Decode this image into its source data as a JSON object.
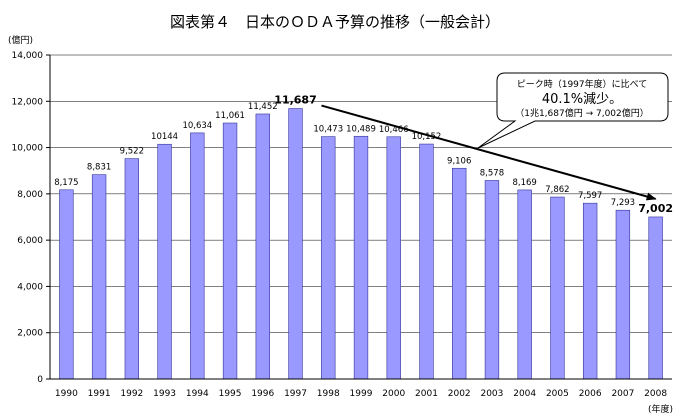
{
  "chart_data": {
    "type": "bar",
    "title": "図表第４　日本のＯＤＡ予算の推移（一般会計）",
    "ylabel": "(億円)",
    "xlabel": "(年度)",
    "ylim": [
      0,
      14000
    ],
    "yticks": [
      0,
      2000,
      4000,
      6000,
      8000,
      10000,
      12000,
      14000
    ],
    "ytick_labels": [
      "0",
      "2,000",
      "4,000",
      "6,000",
      "8,000",
      "10,000",
      "12,000",
      "14,000"
    ],
    "categories": [
      "1990",
      "1991",
      "1992",
      "1993",
      "1994",
      "1995",
      "1996",
      "1997",
      "1998",
      "1999",
      "2000",
      "2001",
      "2002",
      "2003",
      "2004",
      "2005",
      "2006",
      "2007",
      "2008"
    ],
    "values": [
      8175,
      8831,
      9522,
      10144,
      10634,
      11061,
      11452,
      11687,
      10473,
      10489,
      10466,
      10152,
      9106,
      8578,
      8169,
      7862,
      7597,
      7293,
      7002
    ],
    "value_labels": [
      "8,175",
      "8,831",
      "9,522",
      "10144",
      "10,634",
      "11,061",
      "11,452",
      "11,687",
      "10,473",
      "10,489",
      "10,466",
      "10,152",
      "9,106",
      "8,578",
      "8,169",
      "7,862",
      "7,597",
      "7,293",
      "7,002"
    ],
    "bold_labels": [
      "1997",
      "2008"
    ],
    "bar_color": "#9999ff",
    "bar_edge_color": "#333399",
    "arrow": {
      "from": "1997",
      "to": "2008"
    },
    "annotation": {
      "line1": "ピーク時（1997年度）に比べて",
      "line2": "40.1%減少。",
      "line3": "（1兆1,687億円 → 7,002億円）"
    }
  }
}
